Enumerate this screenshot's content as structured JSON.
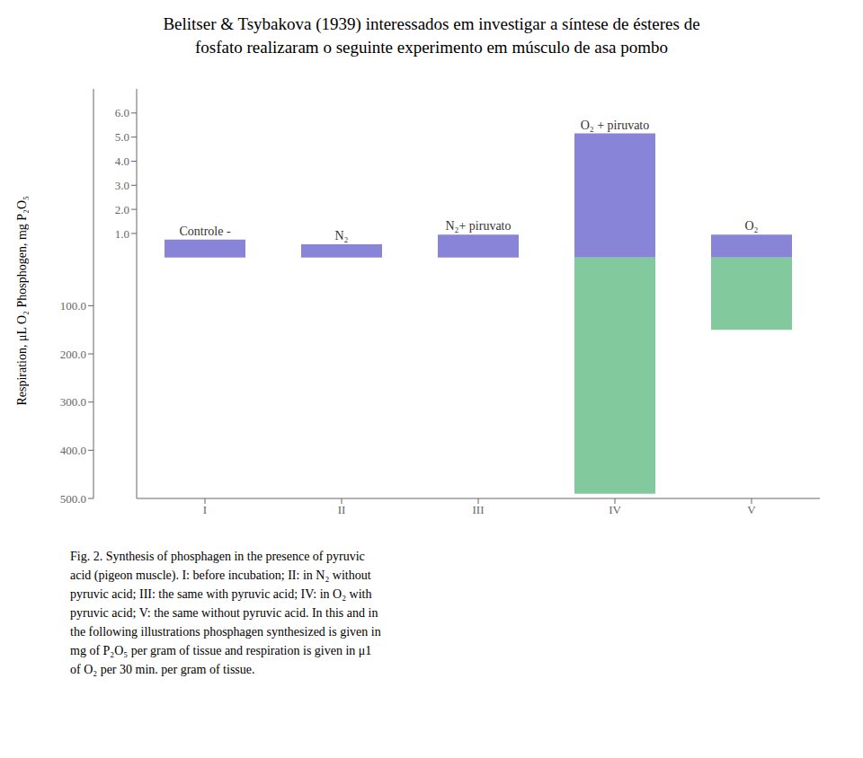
{
  "chart_data": {
    "type": "bar",
    "title": [
      "Belitser & Tsybakova (1939) interessados em investigar a síntese de ésteres de",
      "fosfato realizaram o seguinte experimento em músculo de asa pombo"
    ],
    "categories": [
      "I",
      "II",
      "III",
      "IV",
      "V"
    ],
    "series": [
      {
        "color": "#8884d8",
        "values": [
          0.75,
          0.55,
          0.95,
          5.15,
          0.95
        ]
      },
      {
        "color": "#82ca9d",
        "values": [
          0,
          0,
          0,
          490,
          150
        ],
        "axis": "y2"
      }
    ],
    "ylabel": "Respiration, μL O₂ Phosphogen, mg P₂O₅",
    "ylim": [
      -10,
      7
    ],
    "yticks": [
      {
        "value": 1,
        "label": "1.0"
      },
      {
        "value": 2,
        "label": "2.0"
      },
      {
        "value": 3,
        "label": "3.0"
      },
      {
        "value": 4,
        "label": "4.0"
      },
      {
        "value": 5,
        "label": "5.0"
      },
      {
        "value": 6,
        "label": "6.0"
      }
    ],
    "y2lim": [
      500,
      -350
    ],
    "y2ticks": [
      {
        "value": 100,
        "label": "100.0"
      },
      {
        "value": 200,
        "label": "200.0"
      },
      {
        "value": 300,
        "label": "300.0"
      },
      {
        "value": 400,
        "label": "400.0"
      },
      {
        "value": 500,
        "label": "500.0"
      }
    ],
    "annotations": [
      "Controle -",
      "N₂",
      "N₂+ piruvato",
      "O₂ + piruvato",
      "O₂"
    ],
    "caption": [
      "Fig. 2. Synthesis of phosphagen in the presence of pyruvic",
      "acid (pigeon muscle). I: before incubation; II: in N₂ without",
      "pyruvic acid; III: the same with pyruvic acid; IV: in O₂ with",
      "pyruvic acid; V: the same without pyruvic acid. In this and in",
      "the following illustrations phosphagen synthesized is given in",
      "mg of P₂O₅ per gram of tissue and respiration is given in μ1",
      "of O₂ per 30 min. per gram of tissue."
    ]
  }
}
